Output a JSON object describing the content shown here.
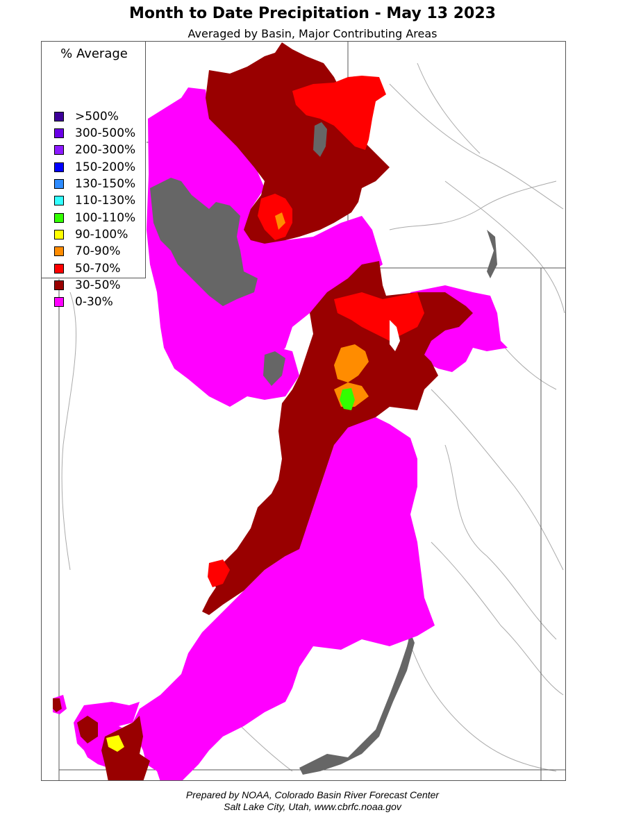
{
  "title": "Month to Date Precipitation - May 13 2023",
  "subtitle": "Averaged by Basin, Major Contributing Areas",
  "legend": {
    "title": "% Average",
    "items": [
      {
        "label": ">500%",
        "color": "#3d0099"
      },
      {
        "label": "300-500%",
        "color": "#6a00e6"
      },
      {
        "label": "200-300%",
        "color": "#8c1aff"
      },
      {
        "label": "150-200%",
        "color": "#0000ff"
      },
      {
        "label": "130-150%",
        "color": "#2e8cff"
      },
      {
        "label": "110-130%",
        "color": "#33ffff"
      },
      {
        "label": "100-110%",
        "color": "#33ff00"
      },
      {
        "label": "90-100%",
        "color": "#ffff00"
      },
      {
        "label": "70-90%",
        "color": "#ff8c00"
      },
      {
        "label": "50-70%",
        "color": "#ff0000"
      },
      {
        "label": "30-50%",
        "color": "#990000"
      },
      {
        "label": "0-30%",
        "color": "#ff00ff"
      }
    ]
  },
  "map": {
    "lake_color": "#666666",
    "boundary_color": "#555555",
    "river_color": "#aaaaaa"
  },
  "footer": {
    "line1": "Prepared by NOAA, Colorado Basin River Forecast Center",
    "line2": "Salt Lake City, Utah, www.cbrfc.noaa.gov"
  }
}
